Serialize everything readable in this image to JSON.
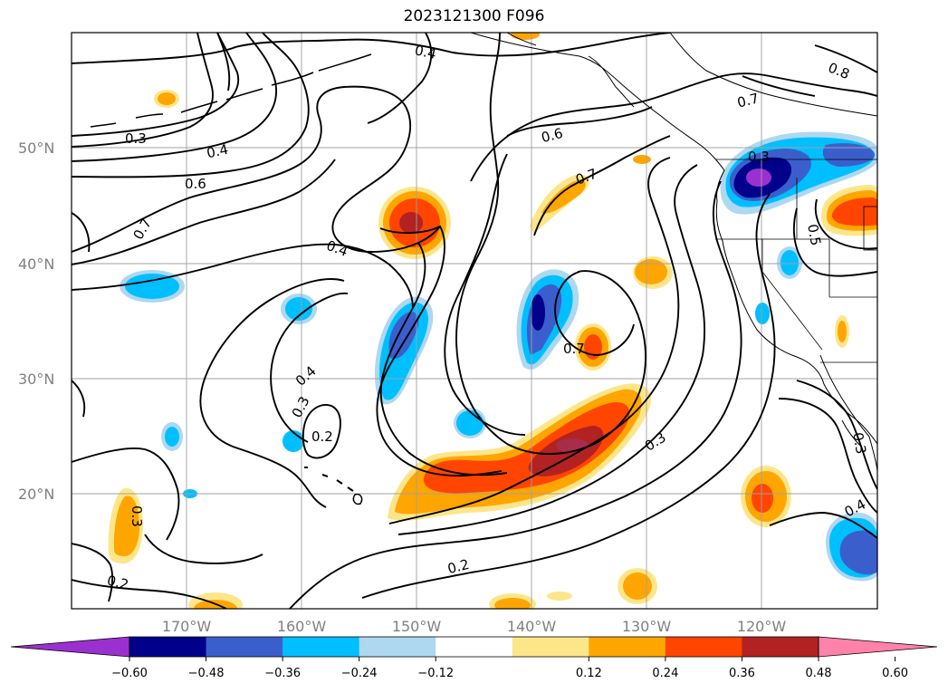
{
  "title": "2023121300 F096",
  "map": {
    "lat_labels": [
      "50°N",
      "40°N",
      "30°N",
      "20°N"
    ],
    "lon_labels": [
      "170°W",
      "160°W",
      "150°W",
      "140°W",
      "130°W",
      "120°W"
    ],
    "contour_labels": [
      "0.4",
      "0.3",
      "0.4",
      "0.6",
      "0.7",
      "0.4",
      "0.6",
      "0.7",
      "0.7",
      "0.8",
      "0.5",
      "0.4",
      "0.3",
      "0.2",
      "0.7",
      "0.3",
      "0.2",
      "0.3",
      "0.4",
      "0.3",
      "0.2",
      "0.3"
    ],
    "grid": true
  },
  "colorbar": {
    "ticks": [
      "−0.60",
      "−0.48",
      "−0.36",
      "−0.24",
      "−0.12",
      "0.12",
      "0.24",
      "0.36",
      "0.48",
      "0.60"
    ],
    "colors": [
      "#9b30d0",
      "#00008b",
      "#3a5fcd",
      "#00bfff",
      "#add8f0",
      "#ffffff",
      "#fde68a",
      "#ffa500",
      "#ff4500",
      "#b22222",
      "#ff82ab"
    ]
  }
}
